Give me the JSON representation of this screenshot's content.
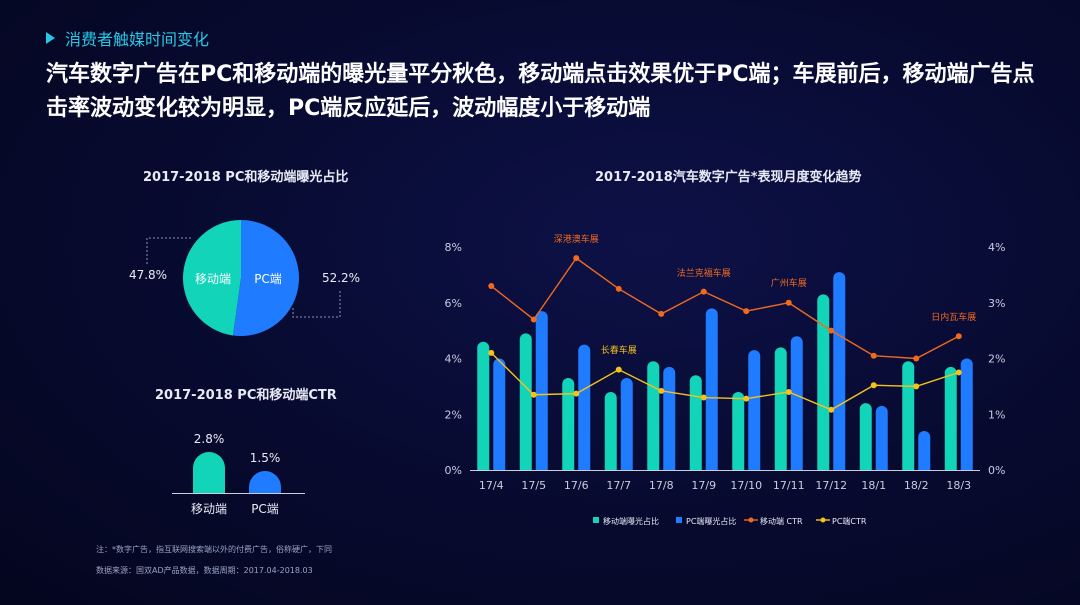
{
  "header": {
    "section_label": "消费者触媒时间变化",
    "headline": "汽车数字广告在PC和移动端的曝光量平分秋色，移动端点击效果优于PC端；车展前后，移动端广告点击率波动变化较为明显，PC端反应延后，波动幅度小于移动端"
  },
  "colors": {
    "mobile": "#11d4b8",
    "pc": "#1f7bff",
    "mobile_ctr": "#f06a1e",
    "pc_ctr": "#f4c21b",
    "event_mobile": "#f06a1e",
    "event_pc": "#f4c21b"
  },
  "chart_data": [
    {
      "type": "pie",
      "title": "2017-2018 PC和移动端曝光占比",
      "labels": [
        "移动端",
        "PC端"
      ],
      "values": [
        47.8,
        52.2
      ],
      "value_labels": [
        "47.8%",
        "52.2%"
      ]
    },
    {
      "type": "bar",
      "title": "2017-2018 PC和移动端CTR",
      "categories": [
        "移动端",
        "PC端"
      ],
      "values": [
        2.8,
        1.5
      ],
      "value_labels": [
        "2.8%",
        "1.5%"
      ]
    },
    {
      "type": "bar",
      "title": "2017-2018汽车数字广告*表现月度变化趋势",
      "categories": [
        "17/4",
        "17/5",
        "17/6",
        "17/7",
        "17/8",
        "17/9",
        "17/10",
        "17/11",
        "17/12",
        "18/1",
        "18/2",
        "18/3"
      ],
      "y_left": {
        "ticks": [
          "0%",
          "2%",
          "4%",
          "6%",
          "8%"
        ],
        "ylim": [
          0,
          8
        ]
      },
      "y_right": {
        "ticks": [
          "0%",
          "1%",
          "2%",
          "3%",
          "4%"
        ],
        "ylim": [
          0,
          4
        ]
      },
      "series": [
        {
          "name": "移动端曝光占比",
          "kind": "bar",
          "axis": "left",
          "values": [
            4.6,
            4.9,
            3.3,
            2.8,
            3.9,
            3.4,
            2.8,
            4.4,
            6.3,
            2.4,
            3.9,
            3.7
          ]
        },
        {
          "name": "PC端曝光占比",
          "kind": "bar",
          "axis": "left",
          "values": [
            4.0,
            5.7,
            4.5,
            3.3,
            3.7,
            5.8,
            4.3,
            4.8,
            7.1,
            2.3,
            1.4,
            4.0
          ]
        },
        {
          "name": "移动端 CTR",
          "kind": "line",
          "axis": "right",
          "values": [
            3.3,
            2.7,
            3.8,
            3.25,
            2.8,
            3.2,
            2.85,
            3.0,
            2.5,
            2.05,
            2.0,
            2.4
          ]
        },
        {
          "name": "PC端CTR",
          "kind": "line",
          "axis": "right",
          "values": [
            2.1,
            1.35,
            1.37,
            1.8,
            1.42,
            1.3,
            1.28,
            1.4,
            1.08,
            1.52,
            1.5,
            1.75
          ]
        }
      ],
      "annotations": [
        {
          "text": "深港澳车展",
          "category": "17/6",
          "color_key": "event_mobile"
        },
        {
          "text": "长春车展",
          "category": "17/7",
          "color_key": "event_pc"
        },
        {
          "text": "法兰克福车展",
          "category": "17/9",
          "color_key": "event_mobile"
        },
        {
          "text": "广州车展",
          "category": "17/11",
          "color_key": "event_mobile"
        },
        {
          "text": "日内瓦车展",
          "category": "18/3",
          "color_key": "event_mobile"
        }
      ]
    }
  ],
  "footnotes": [
    "注：*数字广告，指互联网搜索端以外的付费广告，俗称硬广，下同",
    "数据来源：国双AD产品数据，数据周期：2017.04-2018.03"
  ]
}
